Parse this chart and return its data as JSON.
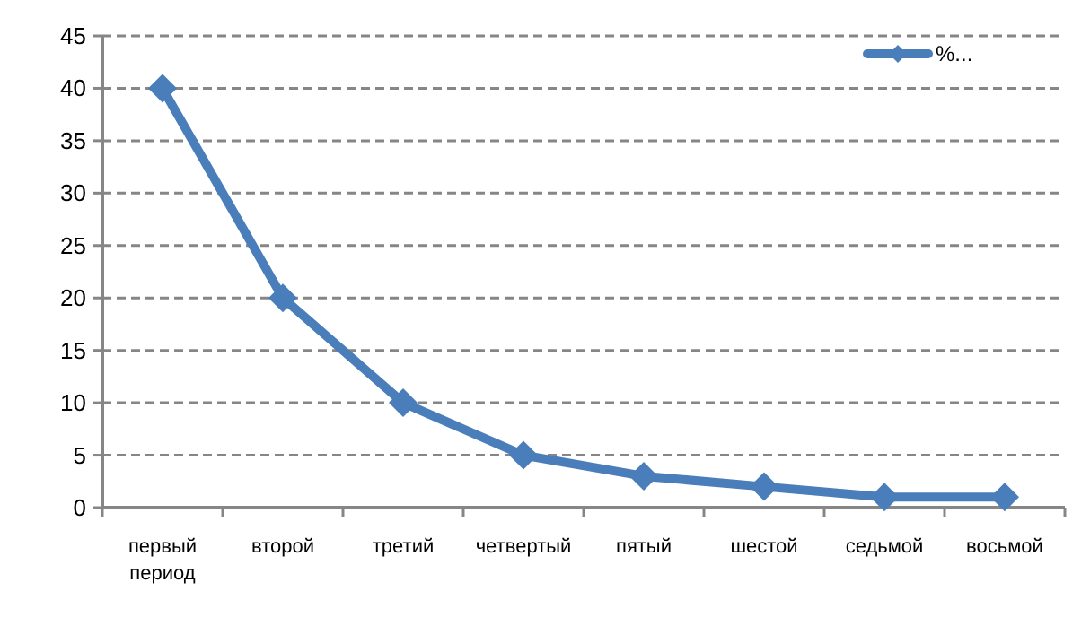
{
  "chart_data": {
    "type": "line",
    "categories": [
      "первый период",
      "второй",
      "третий",
      "четвертый",
      "пятый",
      "шестой",
      "седьмой",
      "восьмой"
    ],
    "series": [
      {
        "name": "%...",
        "color": "#4a7ebb",
        "values": [
          40,
          20,
          10,
          5,
          3,
          2,
          1,
          1
        ]
      }
    ],
    "ylim": [
      0,
      45
    ],
    "yticks": [
      0,
      5,
      10,
      15,
      20,
      25,
      30,
      35,
      40,
      45
    ],
    "grid": "y",
    "legend": "top right",
    "marker": "diamond",
    "line_style": "solid"
  }
}
